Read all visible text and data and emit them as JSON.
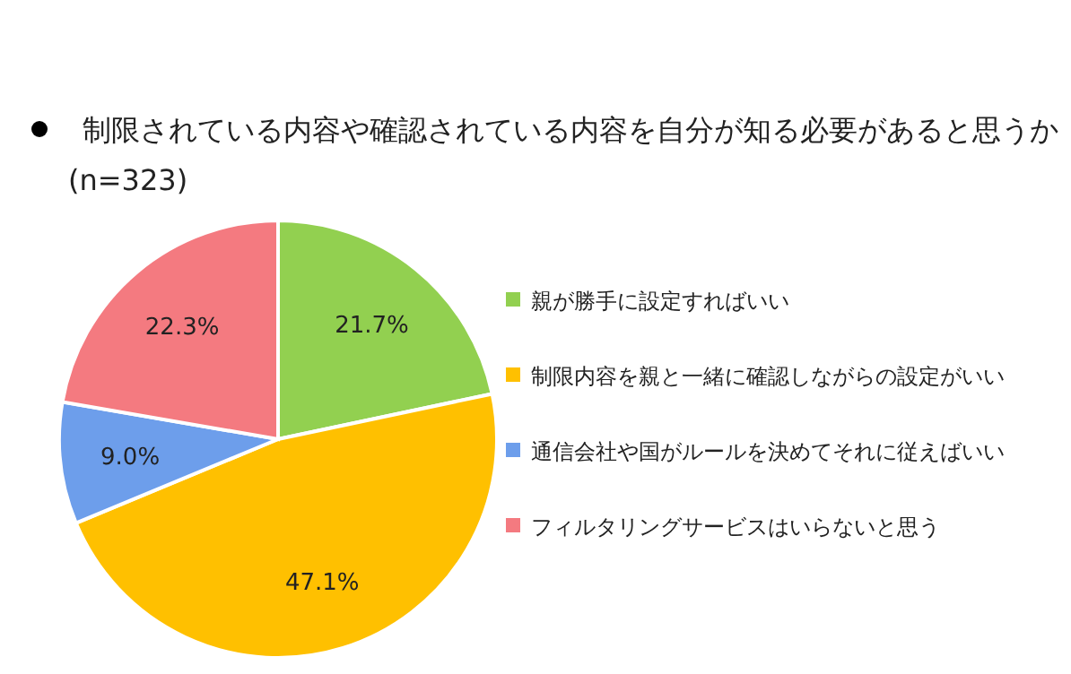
{
  "chart_data": {
    "type": "pie",
    "title": "制限されている内容や確認されている内容を自分が知る必要があると思うか",
    "subtitle": "(n=323)",
    "categories": [
      "親が勝手に設定すればいい",
      "制限内容を親と一緒に確認しながらの設定がいい",
      "通信会社や国がルールを決めてそれに従えばいい",
      "フィルタリングサービスはいらないと思う"
    ],
    "values": [
      21.7,
      47.1,
      9.0,
      22.3
    ],
    "colors": [
      "#92d050",
      "#ffc000",
      "#6d9eeb",
      "#f47a80"
    ],
    "value_labels": [
      "21.7%",
      "47.1%",
      "9.0%",
      "22.3%"
    ],
    "legend": "right"
  }
}
